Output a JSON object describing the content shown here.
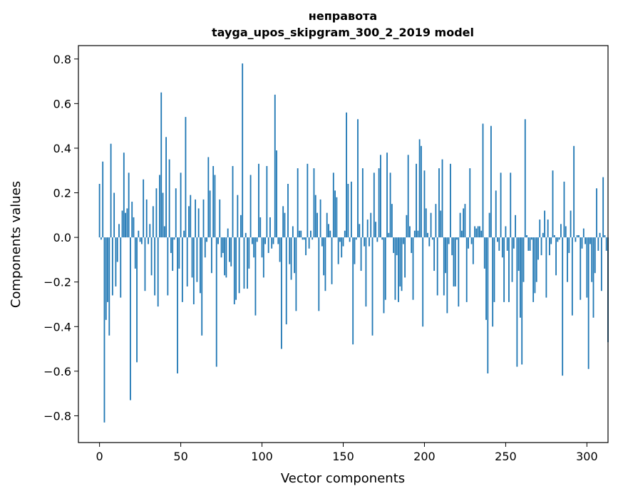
{
  "chart_data": {
    "type": "bar",
    "title_lines": [
      "неправота",
      "tayga_upos_skipgram_300_2_2019 model"
    ],
    "xlabel": "Vector components",
    "ylabel": "Components values",
    "xlim": [
      -13,
      313
    ],
    "ylim": [
      -0.92,
      0.86
    ],
    "xticks": [
      0,
      50,
      100,
      150,
      200,
      250,
      300
    ],
    "xtick_labels": [
      "0",
      "50",
      "100",
      "150",
      "200",
      "250",
      "300"
    ],
    "yticks": [
      -0.8,
      -0.6,
      -0.4,
      -0.2,
      0.0,
      0.2,
      0.4,
      0.6,
      0.8
    ],
    "ytick_labels": [
      "−0.8",
      "−0.6",
      "−0.4",
      "−0.2",
      "0.0",
      "0.2",
      "0.4",
      "0.6",
      "0.8"
    ],
    "bar_color": "#1f77b4",
    "grid": false,
    "series": [
      {
        "values": [
          0.24,
          -0.01,
          0.34,
          -0.83,
          -0.37,
          -0.29,
          -0.44,
          0.42,
          -0.26,
          0.2,
          -0.22,
          -0.11,
          0.06,
          -0.27,
          0.12,
          0.38,
          0.11,
          0.13,
          0.29,
          -0.73,
          0.16,
          0.09,
          -0.14,
          -0.56,
          0.03,
          -0.02,
          -0.03,
          0.26,
          -0.24,
          0.17,
          -0.03,
          0.06,
          -0.17,
          0.14,
          -0.26,
          0.22,
          -0.31,
          0.28,
          0.65,
          0.2,
          0.05,
          0.45,
          -0.26,
          0.35,
          -0.07,
          -0.15,
          -0.01,
          0.22,
          -0.61,
          -0.14,
          0.29,
          -0.29,
          0.03,
          0.54,
          -0.22,
          0.14,
          0.19,
          -0.18,
          -0.3,
          0.17,
          -0.2,
          0.13,
          -0.25,
          -0.44,
          0.17,
          -0.09,
          -0.02,
          0.36,
          0.21,
          -0.16,
          0.32,
          0.28,
          -0.58,
          -0.03,
          0.17,
          -0.09,
          -0.07,
          -0.17,
          -0.18,
          0.04,
          -0.11,
          -0.13,
          0.32,
          -0.3,
          -0.28,
          0.19,
          -0.25,
          0.1,
          0.78,
          -0.23,
          0.02,
          -0.23,
          -0.14,
          0.28,
          -0.03,
          -0.09,
          -0.35,
          -0.02,
          0.33,
          0.09,
          -0.09,
          -0.18,
          -0.03,
          0.32,
          -0.07,
          0.09,
          -0.05,
          -0.03,
          0.64,
          0.39,
          -0.03,
          -0.11,
          -0.5,
          0.14,
          0.11,
          -0.39,
          0.24,
          -0.12,
          -0.19,
          0.05,
          -0.16,
          -0.33,
          0.31,
          0.03,
          0.03,
          -0.01,
          -0.01,
          -0.08,
          0.33,
          -0.05,
          0.03,
          -0.01,
          0.31,
          0.19,
          0.11,
          -0.33,
          0.17,
          -0.04,
          -0.17,
          -0.24,
          0.11,
          0.06,
          0.03,
          -0.21,
          0.29,
          0.21,
          0.18,
          -0.12,
          -0.02,
          -0.09,
          -0.04,
          0.03,
          0.56,
          0.24,
          -0.02,
          0.25,
          -0.48,
          -0.12,
          -0.01,
          0.53,
          0.06,
          -0.15,
          0.31,
          -0.04,
          -0.31,
          0.08,
          -0.04,
          0.11,
          -0.44,
          0.29,
          0.07,
          -0.02,
          0.31,
          0.37,
          -0.01,
          -0.34,
          -0.28,
          0.38,
          0.02,
          0.29,
          0.15,
          -0.07,
          -0.28,
          -0.08,
          -0.29,
          -0.22,
          -0.24,
          -0.03,
          -0.18,
          0.1,
          0.37,
          0.05,
          -0.07,
          -0.28,
          0.03,
          0.33,
          0.03,
          0.44,
          0.41,
          -0.4,
          0.3,
          0.13,
          0.02,
          -0.04,
          0.11,
          -0.01,
          -0.15,
          0.15,
          -0.26,
          0.31,
          0.12,
          0.35,
          -0.26,
          -0.16,
          -0.34,
          -0.03,
          0.33,
          -0.08,
          -0.22,
          -0.22,
          -0.01,
          -0.31,
          0.11,
          0.03,
          0.13,
          0.15,
          -0.29,
          -0.05,
          0.31,
          -0.03,
          -0.12,
          0.05,
          0.04,
          0.05,
          0.05,
          0.03,
          0.51,
          -0.14,
          -0.37,
          -0.61,
          0.11,
          0.5,
          -0.4,
          -0.29,
          0.21,
          -0.02,
          -0.06,
          0.29,
          -0.09,
          -0.29,
          0.05,
          -0.06,
          -0.29,
          0.29,
          -0.2,
          -0.05,
          0.1,
          -0.58,
          -0.15,
          -0.36,
          -0.57,
          -0.2,
          0.53,
          0.01,
          -0.06,
          -0.06,
          -0.01,
          -0.29,
          -0.25,
          -0.2,
          -0.1,
          0.08,
          -0.08,
          0.02,
          0.12,
          -0.27,
          0.08,
          -0.08,
          -0.03,
          0.3,
          0.01,
          -0.17,
          -0.02,
          -0.01,
          0.06,
          -0.62,
          0.25,
          0.05,
          -0.2,
          -0.07,
          0.12,
          -0.35,
          0.41,
          -0.02,
          0.01,
          0.01,
          -0.28,
          -0.05,
          0.04,
          -0.03,
          -0.27,
          -0.59,
          -0.03,
          -0.2,
          -0.36,
          -0.16,
          0.22,
          -0.06,
          0.02,
          -0.24,
          0.27,
          0.01,
          -0.06,
          -0.47
        ]
      }
    ]
  }
}
